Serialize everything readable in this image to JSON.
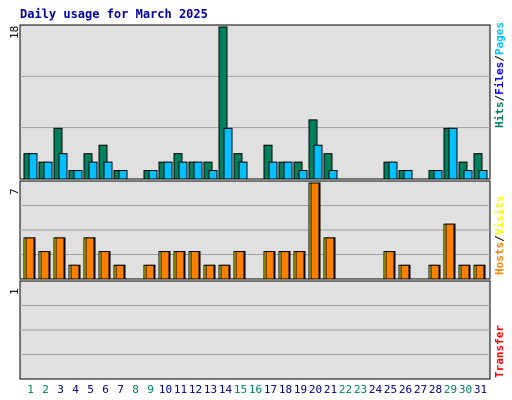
{
  "chart_data": {
    "type": "bar",
    "title": "Daily usage for March 2025",
    "categories": [
      "1",
      "2",
      "3",
      "4",
      "5",
      "6",
      "7",
      "8",
      "9",
      "10",
      "11",
      "12",
      "13",
      "14",
      "15",
      "16",
      "17",
      "18",
      "19",
      "20",
      "21",
      "22",
      "23",
      "24",
      "25",
      "26",
      "27",
      "28",
      "29",
      "30",
      "31"
    ],
    "weekend_days": [
      "1",
      "2",
      "8",
      "9",
      "15",
      "16",
      "22",
      "23",
      "29",
      "30"
    ],
    "panels": [
      {
        "ymax_label": "18",
        "ymax": 18,
        "series": [
          {
            "name": "Hits",
            "color": "#00805c",
            "values": [
              3,
              2,
              6,
              1,
              3,
              4,
              1,
              0,
              1,
              2,
              3,
              2,
              2,
              18,
              3,
              0,
              4,
              2,
              2,
              7,
              3,
              0,
              0,
              0,
              2,
              1,
              0,
              1,
              6,
              2,
              3
            ]
          },
          {
            "name": "Files",
            "color": "#0000ff",
            "values": [
              0,
              0,
              0,
              0,
              0,
              0,
              0,
              0,
              0,
              0,
              0,
              0,
              0,
              0,
              0,
              0,
              0,
              0,
              0,
              0,
              0,
              0,
              0,
              0,
              0,
              0,
              0,
              0,
              0,
              0,
              0
            ]
          },
          {
            "name": "Pages",
            "color": "#00c0ff",
            "values": [
              3,
              2,
              3,
              1,
              2,
              2,
              1,
              0,
              1,
              2,
              2,
              2,
              1,
              6,
              2,
              0,
              2,
              2,
              1,
              4,
              1,
              0,
              0,
              0,
              2,
              1,
              0,
              1,
              6,
              1,
              1
            ]
          }
        ]
      },
      {
        "ymax_label": "7",
        "ymax": 7,
        "series": [
          {
            "name": "Visits",
            "color": "#ffff00",
            "values": [
              3,
              2,
              3,
              1,
              3,
              2,
              1,
              0,
              1,
              2,
              2,
              2,
              1,
              1,
              2,
              0,
              2,
              2,
              2,
              7,
              3,
              0,
              0,
              0,
              2,
              1,
              0,
              1,
              4,
              1,
              1
            ]
          },
          {
            "name": "Hosts",
            "color": "#ff8000",
            "values": [
              3,
              2,
              3,
              1,
              3,
              2,
              1,
              0,
              1,
              2,
              2,
              2,
              1,
              1,
              2,
              0,
              2,
              2,
              2,
              7,
              3,
              0,
              0,
              0,
              2,
              1,
              0,
              1,
              4,
              1,
              1
            ]
          }
        ]
      },
      {
        "ymax_label": "1",
        "ymax": 1,
        "series": [
          {
            "name": "Transfer",
            "color": "#ff0000",
            "values": [
              0,
              0,
              0,
              0,
              0,
              0,
              0,
              0,
              0,
              0,
              0,
              0,
              0,
              0,
              0,
              0,
              0,
              0,
              0,
              0,
              0,
              0,
              0,
              0,
              0,
              0,
              0,
              0,
              0,
              0,
              0
            ]
          }
        ]
      }
    ],
    "grid": true,
    "legend_placement": "right"
  },
  "legend": {
    "top": [
      {
        "text": "Hits",
        "color": "#00805c"
      },
      {
        "text": "/",
        "color": "#000000"
      },
      {
        "text": "Files",
        "color": "#0000ff"
      },
      {
        "text": "/",
        "color": "#000000"
      },
      {
        "text": "Pages",
        "color": "#00c0ff"
      }
    ],
    "middle": [
      {
        "text": "Hosts",
        "color": "#ff8000"
      },
      {
        "text": "/",
        "color": "#000000"
      },
      {
        "text": "Visits",
        "color": "#ffff00"
      }
    ],
    "bottom": [
      {
        "text": "Transfer",
        "color": "#ff0000"
      }
    ]
  },
  "colors": {
    "background": "#ffffff",
    "plot_background": "#e0e0e0",
    "gridline": "#a0a0a0",
    "title": "#0000a0",
    "weekday_label": "#000080",
    "weekend_label": "#00805c"
  }
}
